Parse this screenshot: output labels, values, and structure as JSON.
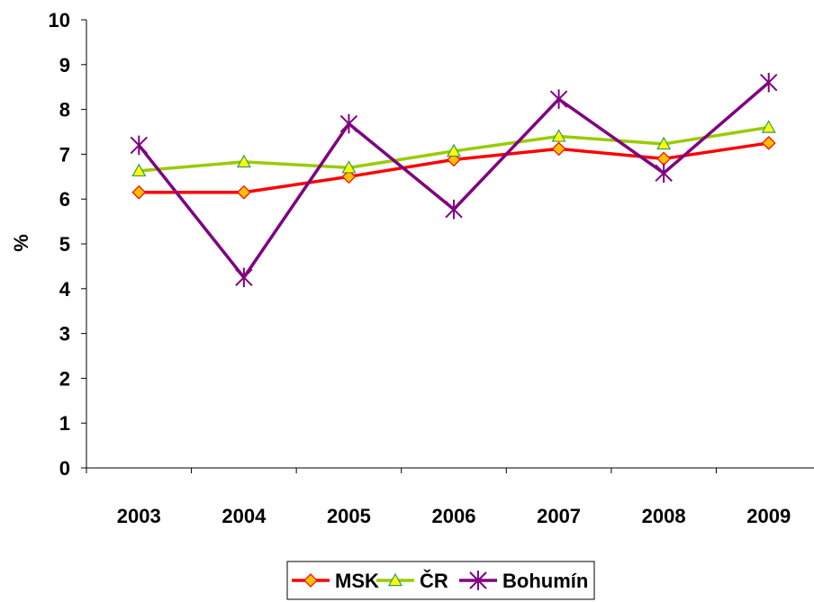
{
  "chart_data": {
    "type": "line",
    "categories": [
      "2003",
      "2004",
      "2005",
      "2006",
      "2007",
      "2008",
      "2009"
    ],
    "ylabel": "%",
    "xlabel": "",
    "ylim": [
      0,
      10
    ],
    "yticks": [
      "0",
      "1",
      "2",
      "3",
      "4",
      "5",
      "6",
      "7",
      "8",
      "9",
      "10"
    ],
    "grid": false,
    "legend_position": "bottom",
    "series": [
      {
        "name": "MSK",
        "values": [
          6.15,
          6.15,
          6.5,
          6.88,
          7.12,
          6.9,
          7.25
        ],
        "color": "#ff0000",
        "marker": "diamond",
        "marker_fill": "#ffc000",
        "marker_stroke": "#ff0000"
      },
      {
        "name": "ČR",
        "values": [
          6.63,
          6.83,
          6.7,
          7.07,
          7.4,
          7.23,
          7.6
        ],
        "color": "#99cc00",
        "marker": "triangle",
        "marker_fill": "#ffff00",
        "marker_stroke": "#339966"
      },
      {
        "name": "Bohumín",
        "values": [
          7.2,
          4.25,
          7.68,
          5.77,
          8.23,
          6.58,
          8.6
        ],
        "color": "#800080",
        "marker": "star",
        "marker_fill": "none",
        "marker_stroke": "#800080"
      }
    ]
  }
}
